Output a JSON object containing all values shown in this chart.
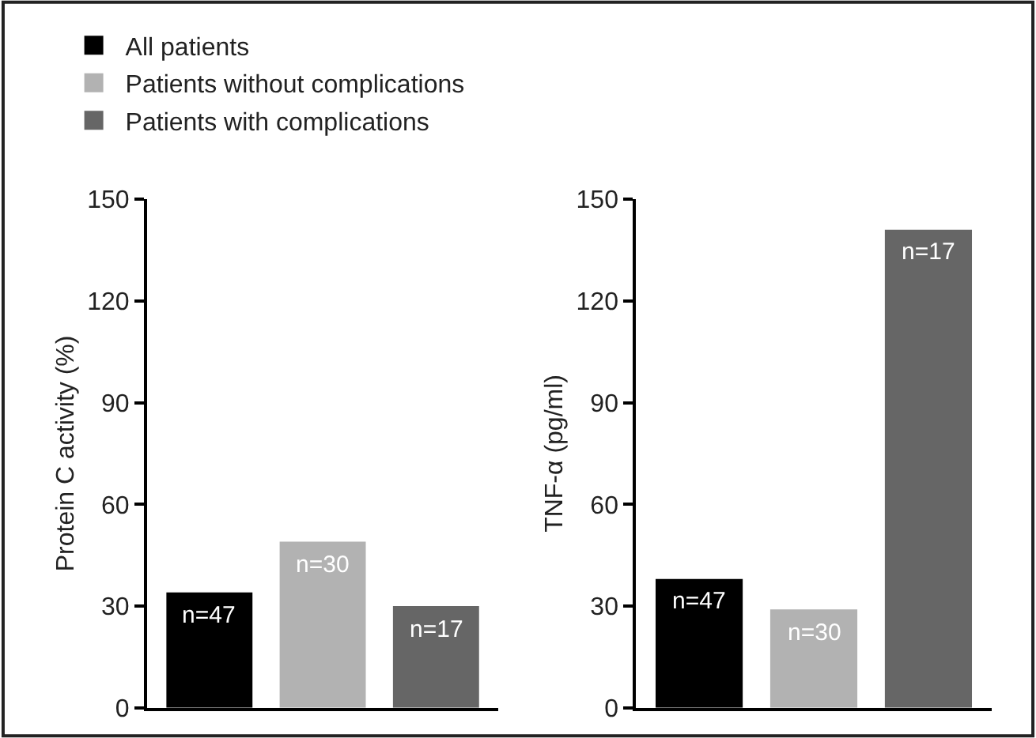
{
  "chart_data": [
    {
      "type": "bar",
      "ylabel": "Protein C activity (%)",
      "categories": [
        null,
        null,
        null
      ],
      "ylim": [
        0,
        150
      ],
      "yticks": [
        0,
        30,
        60,
        90,
        120,
        150
      ],
      "legend": "top left",
      "annotations": [
        {
          "text": "n=47",
          "y": 34
        },
        {
          "text": "n=30",
          "y": 49
        },
        {
          "text": "n=17",
          "y": 30
        }
      ],
      "series": [
        {
          "name": "All patients",
          "color": "#000000",
          "values": [
            34,
            null,
            null
          ]
        },
        {
          "name": "Patients without complications",
          "color": "#b2b2b2",
          "values": [
            null,
            49,
            null
          ]
        },
        {
          "name": "Patients with complications",
          "color": "#666666",
          "values": [
            null,
            null,
            30
          ]
        }
      ]
    },
    {
      "type": "bar",
      "ylabel": "TNF-α (pg/ml)",
      "categories": [
        null,
        null,
        null
      ],
      "ylim": [
        0,
        150
      ],
      "yticks": [
        0,
        30,
        60,
        90,
        120,
        150
      ],
      "legend": false,
      "annotations": [
        {
          "text": "n=47",
          "y": 38
        },
        {
          "text": "n=30",
          "y": 29
        },
        {
          "text": "n=17",
          "y": 141
        }
      ],
      "series": [
        {
          "color": "#000000",
          "values": [
            38,
            null,
            null
          ]
        },
        {
          "color": "#b2b2b2",
          "values": [
            null,
            29,
            null
          ]
        },
        {
          "color": "#666666",
          "values": [
            null,
            null,
            141
          ]
        }
      ]
    }
  ]
}
